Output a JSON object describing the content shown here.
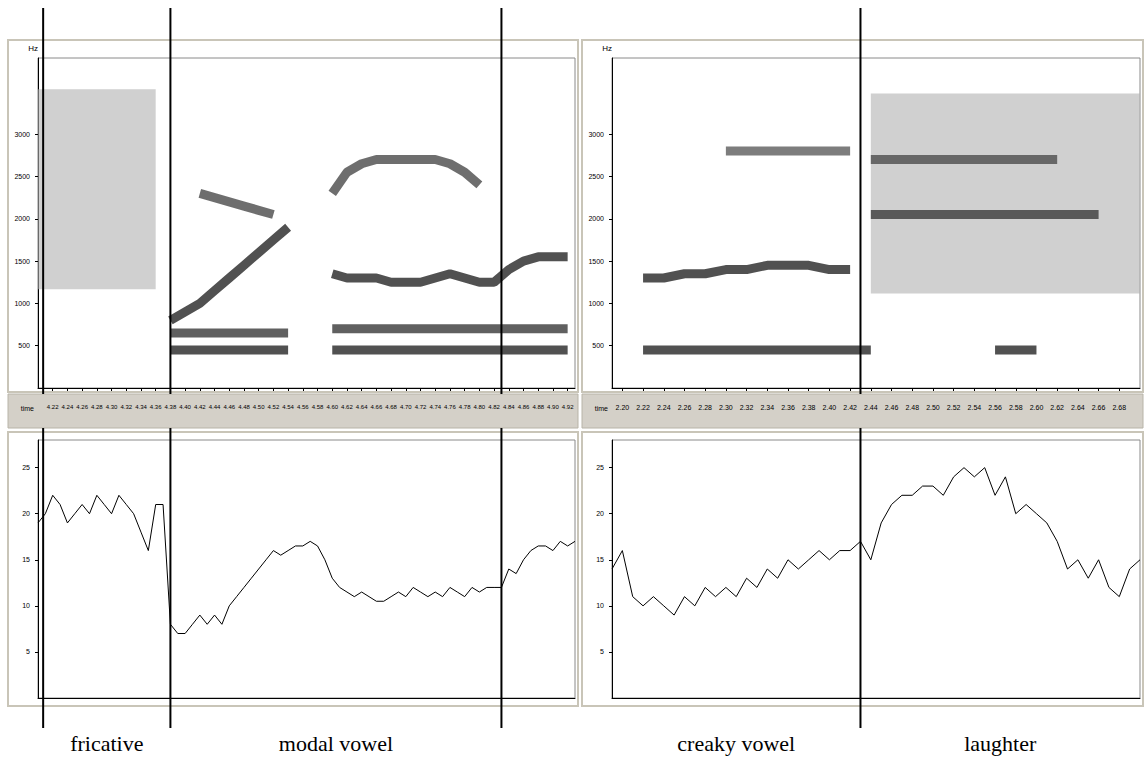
{
  "chart_data": [
    {
      "type": "line",
      "x_label": "time",
      "y_label": "Hz",
      "x": [
        4.2,
        4.22,
        4.24,
        4.26,
        4.28,
        4.3,
        4.32,
        4.34,
        4.36,
        4.38,
        4.4,
        4.42,
        4.44,
        4.46,
        4.48,
        4.5,
        4.52,
        4.54,
        4.56,
        4.58,
        4.6,
        4.62,
        4.64,
        4.66,
        4.68,
        4.7,
        4.72,
        4.74,
        4.76,
        4.78,
        4.8,
        4.82,
        4.84,
        4.86,
        4.88,
        4.9,
        4.92
      ],
      "xlim": [
        4.2,
        4.93
      ],
      "xticks": [
        4.22,
        4.24,
        4.26,
        4.28,
        {
          "value": 4.3,
          "label": "4.30"
        },
        4.32,
        4.34,
        4.36,
        4.38,
        {
          "value": 4.4,
          "label": "4.40"
        },
        4.42,
        4.44,
        4.46,
        4.48,
        {
          "value": 4.5,
          "label": "4.50"
        },
        4.52,
        4.54,
        4.56,
        4.58,
        {
          "value": 4.6,
          "label": "4.60"
        },
        4.62,
        4.64,
        4.66,
        4.68,
        {
          "value": 4.7,
          "label": "4.70"
        },
        4.72,
        4.74,
        4.76,
        4.78,
        {
          "value": 4.8,
          "label": "4.80"
        },
        4.82,
        4.84,
        4.86,
        4.88,
        {
          "value": 4.9,
          "label": "4.90"
        },
        4.92
      ],
      "ylim": [
        0,
        3900
      ],
      "yticks": [
        500,
        1000,
        1500,
        2000,
        2500,
        3000
      ],
      "tick_labels": true,
      "series": [
        {
          "color": "#b0b0b0",
          "line_style": "noise",
          "values": [
            2350,
            2350,
            2350,
            2350,
            2350,
            2350,
            2350,
            2350,
            2350,
            null,
            null,
            null,
            null,
            null,
            null,
            null,
            null,
            null,
            null,
            null,
            null,
            null,
            null,
            null,
            null,
            null,
            null,
            null,
            null,
            null,
            null,
            null,
            null,
            null,
            null,
            null,
            null
          ]
        },
        {
          "color": "#555555",
          "line_style": "solid",
          "values": [
            null,
            null,
            null,
            null,
            null,
            null,
            null,
            null,
            null,
            null,
            null,
            2300,
            2250,
            2200,
            2150,
            2100,
            2050,
            null,
            null,
            null,
            2300,
            2550,
            2650,
            2700,
            2700,
            2700,
            2700,
            2700,
            2650,
            2550,
            2400,
            null,
            null,
            null,
            null,
            null,
            null
          ]
        },
        {
          "color": "#333333",
          "line_style": "solid",
          "values": [
            null,
            null,
            null,
            null,
            null,
            null,
            null,
            null,
            null,
            800,
            900,
            1000,
            1150,
            1300,
            1450,
            1600,
            1750,
            1900,
            null,
            null,
            1350,
            1300,
            1300,
            1300,
            1250,
            1250,
            1250,
            1300,
            1350,
            1300,
            1250,
            1250,
            1400,
            1500,
            1550,
            1550,
            1550
          ]
        },
        {
          "color": "#444444",
          "line_style": "solid",
          "values": [
            null,
            null,
            null,
            null,
            null,
            null,
            null,
            null,
            null,
            650,
            650,
            650,
            650,
            650,
            650,
            650,
            650,
            650,
            null,
            null,
            700,
            700,
            700,
            700,
            700,
            700,
            700,
            700,
            700,
            700,
            700,
            700,
            700,
            700,
            700,
            700,
            700
          ]
        },
        {
          "color": "#333333",
          "line_style": "solid",
          "values": [
            null,
            null,
            null,
            null,
            null,
            null,
            null,
            null,
            null,
            450,
            450,
            450,
            450,
            450,
            450,
            450,
            450,
            450,
            null,
            null,
            450,
            450,
            450,
            450,
            450,
            450,
            450,
            450,
            450,
            450,
            450,
            450,
            450,
            450,
            450,
            450,
            450
          ]
        }
      ],
      "segments": [
        {
          "label": "fricative",
          "start": 4.207,
          "end": 4.38
        },
        {
          "label": "modal vowel",
          "start": 4.38,
          "end": 4.83
        }
      ]
    },
    {
      "type": "line",
      "x": [
        4.2,
        4.21,
        4.22,
        4.23,
        4.24,
        4.25,
        4.26,
        4.27,
        4.28,
        4.29,
        4.3,
        4.31,
        4.32,
        4.33,
        4.34,
        4.35,
        4.36,
        4.37,
        4.38,
        4.39,
        4.4,
        4.41,
        4.42,
        4.43,
        4.44,
        4.45,
        4.46,
        4.47,
        4.48,
        4.49,
        4.5,
        4.51,
        4.52,
        4.53,
        4.54,
        4.55,
        4.56,
        4.57,
        4.58,
        4.59,
        4.6,
        4.61,
        4.62,
        4.63,
        4.64,
        4.65,
        4.66,
        4.67,
        4.68,
        4.69,
        4.7,
        4.71,
        4.72,
        4.73,
        4.74,
        4.75,
        4.76,
        4.77,
        4.78,
        4.79,
        4.8,
        4.81,
        4.82,
        4.83,
        4.84,
        4.85,
        4.86,
        4.87,
        4.88,
        4.89,
        4.9,
        4.91,
        4.92,
        4.93
      ],
      "values": [
        19,
        20,
        22,
        21,
        19,
        20,
        21,
        20,
        22,
        21,
        20,
        22,
        21,
        20,
        18,
        16,
        21,
        21,
        8,
        7,
        7,
        8,
        9,
        8,
        9,
        8,
        10,
        11,
        12,
        13,
        14,
        15,
        16,
        15.5,
        16,
        16.5,
        16.5,
        17,
        16.5,
        15,
        13,
        12,
        11.5,
        11,
        11.5,
        11,
        10.5,
        10.5,
        11,
        11.5,
        11,
        12,
        11.5,
        11,
        11.5,
        11,
        12,
        11.5,
        11,
        12,
        11.5,
        12,
        12,
        12,
        14,
        13.5,
        15,
        16,
        16.5,
        16.5,
        16,
        17,
        16.5,
        17
      ],
      "color": "#000000",
      "xlim": [
        4.2,
        4.93
      ],
      "ylim": [
        0,
        28
      ],
      "yticks": [
        5,
        10,
        15,
        20,
        25
      ],
      "tick_labels": "y"
    },
    {
      "type": "line",
      "x_label": "time",
      "y_label": "Hz",
      "x": [
        2.2,
        2.22,
        2.24,
        2.26,
        2.28,
        2.3,
        2.32,
        2.34,
        2.36,
        2.38,
        2.4,
        2.42,
        2.44,
        2.46,
        2.48,
        2.5,
        2.52,
        2.54,
        2.56,
        2.58,
        2.6,
        2.62,
        2.64,
        2.66,
        2.68,
        2.7
      ],
      "xlim": [
        2.19,
        2.7
      ],
      "xticks": [
        {
          "value": 2.2,
          "label": "2.20"
        },
        2.22,
        2.24,
        2.26,
        2.28,
        {
          "value": 2.3,
          "label": "2.30"
        },
        2.32,
        2.34,
        2.36,
        2.38,
        {
          "value": 2.4,
          "label": "2.40"
        },
        2.42,
        2.44,
        2.46,
        2.48,
        {
          "value": 2.5,
          "label": "2.50"
        },
        2.52,
        2.54,
        2.56,
        2.58,
        {
          "value": 2.6,
          "label": "2.60"
        },
        2.62,
        2.64,
        2.66,
        2.68
      ],
      "ylim": [
        0,
        3900
      ],
      "yticks": [
        500,
        1000,
        1500,
        2000,
        2500,
        3000
      ],
      "tick_labels": true,
      "series": [
        {
          "color": "#b0b0b0",
          "line_style": "noise",
          "values": [
            null,
            null,
            null,
            null,
            null,
            null,
            null,
            null,
            null,
            null,
            null,
            null,
            2300,
            2300,
            2300,
            2300,
            2300,
            2300,
            2300,
            2300,
            2300,
            2300,
            2300,
            2300,
            2300,
            2300
          ]
        },
        {
          "color": "#555555",
          "line_style": "solid",
          "values": [
            null,
            null,
            null,
            null,
            null,
            null,
            null,
            null,
            null,
            null,
            null,
            null,
            2700,
            2700,
            2700,
            2700,
            2700,
            2700,
            2700,
            2700,
            2700,
            2700,
            null,
            null,
            null,
            null
          ]
        },
        {
          "color": "#444444",
          "line_style": "solid",
          "values": [
            null,
            null,
            null,
            null,
            null,
            null,
            null,
            null,
            null,
            null,
            null,
            null,
            2050,
            2050,
            2050,
            2050,
            2050,
            2050,
            2050,
            2050,
            2050,
            2050,
            2050,
            2050,
            null,
            null
          ]
        },
        {
          "color": "#666666",
          "line_style": "solid",
          "values": [
            null,
            null,
            null,
            null,
            null,
            2800,
            2800,
            2800,
            2800,
            2800,
            2800,
            2800,
            null,
            null,
            null,
            null,
            null,
            null,
            null,
            null,
            null,
            null,
            null,
            null,
            null,
            null
          ]
        },
        {
          "color": "#333333",
          "line_style": "solid",
          "values": [
            null,
            1300,
            1300,
            1350,
            1350,
            1400,
            1400,
            1450,
            1450,
            1450,
            1400,
            1400,
            null,
            null,
            null,
            null,
            null,
            null,
            null,
            null,
            null,
            null,
            null,
            null,
            null,
            null
          ]
        },
        {
          "color": "#333333",
          "line_style": "solid",
          "values": [
            null,
            450,
            450,
            450,
            450,
            450,
            450,
            450,
            450,
            450,
            450,
            450,
            450,
            null,
            null,
            null,
            null,
            null,
            450,
            450,
            450,
            null,
            null,
            null,
            null,
            null
          ]
        }
      ],
      "segments": [
        {
          "label": "creaky vowel",
          "start": 2.19,
          "end": 2.43
        },
        {
          "label": "laughter",
          "start": 2.43,
          "end": 2.7
        }
      ]
    },
    {
      "type": "line",
      "x": [
        2.19,
        2.2,
        2.21,
        2.22,
        2.23,
        2.24,
        2.25,
        2.26,
        2.27,
        2.28,
        2.29,
        2.3,
        2.31,
        2.32,
        2.33,
        2.34,
        2.35,
        2.36,
        2.37,
        2.38,
        2.39,
        2.4,
        2.41,
        2.42,
        2.43,
        2.44,
        2.45,
        2.46,
        2.47,
        2.48,
        2.49,
        2.5,
        2.51,
        2.52,
        2.53,
        2.54,
        2.55,
        2.56,
        2.57,
        2.58,
        2.59,
        2.6,
        2.61,
        2.62,
        2.63,
        2.64,
        2.65,
        2.66,
        2.67,
        2.68,
        2.69,
        2.7
      ],
      "values": [
        14,
        16,
        11,
        10,
        11,
        10,
        9,
        11,
        10,
        12,
        11,
        12,
        11,
        13,
        12,
        14,
        13,
        15,
        14,
        15,
        16,
        15,
        16,
        16,
        17,
        15,
        19,
        21,
        22,
        22,
        23,
        23,
        22,
        24,
        25,
        24,
        25,
        22,
        24,
        20,
        21,
        20,
        19,
        17,
        14,
        15,
        13,
        15,
        12,
        11,
        14,
        15
      ],
      "color": "#000000",
      "xlim": [
        2.19,
        2.7
      ],
      "ylim": [
        0,
        28
      ],
      "yticks": [
        5,
        10,
        15,
        20,
        25
      ],
      "tick_labels": "y"
    }
  ]
}
